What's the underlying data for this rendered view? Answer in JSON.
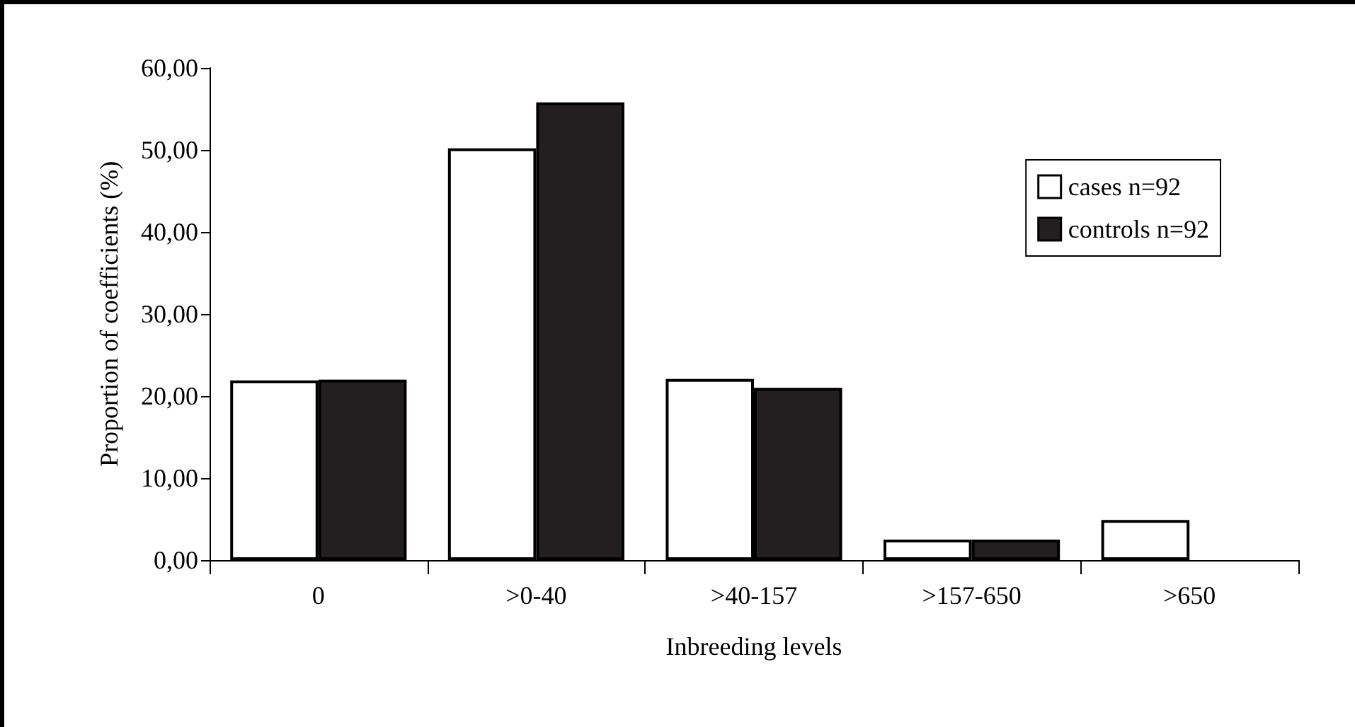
{
  "chart_data": {
    "type": "bar",
    "xlabel": "Inbreeding levels",
    "ylabel": "Proportion of coefficients (%)",
    "categories": [
      "0",
      ">0-40",
      ">40-157",
      ">157-650",
      ">650"
    ],
    "series": [
      {
        "name": "cases n=92",
        "color": "#ffffff",
        "values": [
          21.9,
          50.2,
          22.1,
          2.5,
          4.9
        ]
      },
      {
        "name": "controls n=92",
        "color": "#231f20",
        "values": [
          22.0,
          55.8,
          21.0,
          2.5,
          0
        ]
      }
    ],
    "ylim": [
      0,
      60
    ],
    "yticks": [
      {
        "value": 0,
        "label": "0,00"
      },
      {
        "value": 10,
        "label": "10,00"
      },
      {
        "value": 20,
        "label": "20,00"
      },
      {
        "value": 30,
        "label": "30,00"
      },
      {
        "value": 40,
        "label": "40,00"
      },
      {
        "value": 50,
        "label": "50,00"
      },
      {
        "value": 60,
        "label": "60,00"
      }
    ],
    "grid": false,
    "legend": "right"
  }
}
